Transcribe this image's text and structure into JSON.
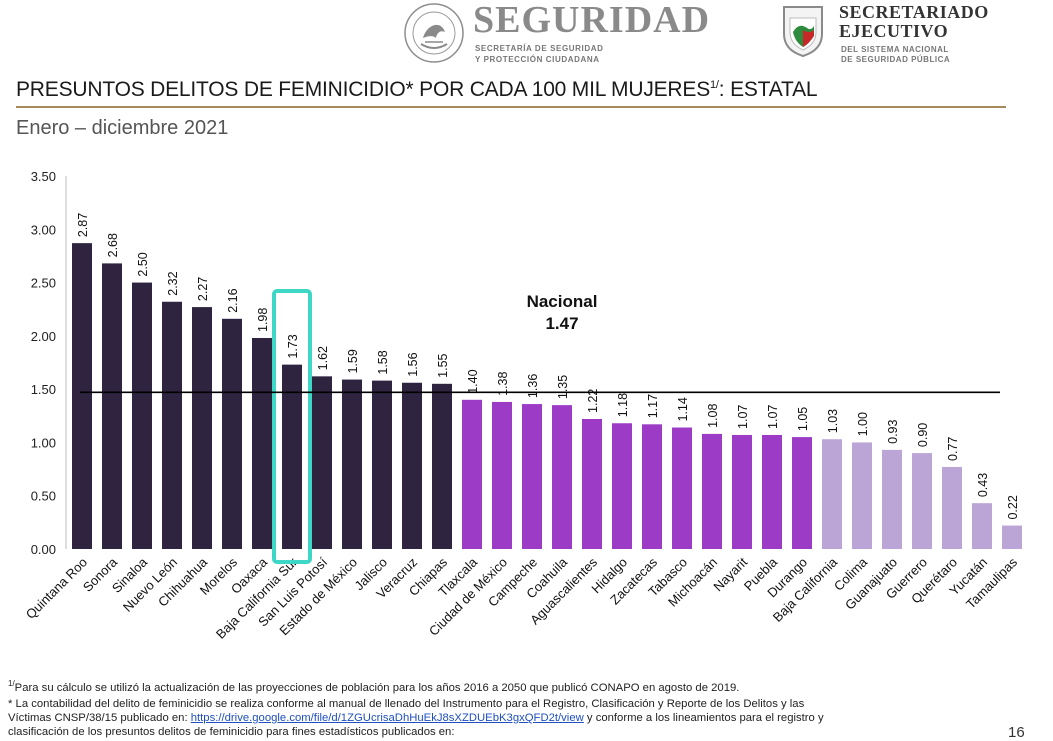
{
  "header": {
    "seguridad_title": "SEGURIDAD",
    "seguridad_sub_1": "SECRETARÍA DE SEGURIDAD",
    "seguridad_sub_2": "Y PROTECCIÓN CIUDADANA",
    "seal_text": "ESTADOS UNIDOS MEXICANOS",
    "sesnsp_title_1": "SECRETARIADO",
    "sesnsp_title_2": "EJECUTIVO",
    "sesnsp_sub_1": "DEL SISTEMA NACIONAL",
    "sesnsp_sub_2": "DE SEGURIDAD PÚBLICA"
  },
  "title_main": "PRESUNTOS DELITOS DE FEMINICIDIO* POR CADA 100 MIL MUJERES",
  "title_sup": "1/",
  "title_tail": ": ESTATAL",
  "period": "Enero – diciembre 2021",
  "colors": {
    "dark": "#2f2440",
    "purple": "#9b3bc6",
    "light": "#bba4d6",
    "highlight": "#3ed6c4",
    "national_line": "#000000",
    "title_rule": "#a58a5b"
  },
  "chart_data": {
    "type": "bar",
    "ylim": [
      0,
      3.5
    ],
    "yticks": [
      "0.00",
      "0.50",
      "1.00",
      "1.50",
      "2.00",
      "2.50",
      "3.00",
      "3.50"
    ],
    "categories": [
      "Quintana Roo",
      "Sonora",
      "Sinaloa",
      "Nuevo León",
      "Chihuahua",
      "Morelos",
      "Oaxaca",
      "Baja California Sur",
      "San Luis Potosí",
      "Estado de México",
      "Jalisco",
      "Veracruz",
      "Chiapas",
      "Tlaxcala",
      "Ciudad de México",
      "Campeche",
      "Coahuila",
      "Aguascalientes",
      "Hidalgo",
      "Zacatecas",
      "Tabasco",
      "Michoacán",
      "Nayarit",
      "Puebla",
      "Durango",
      "Baja California",
      "Colima",
      "Guanajuato",
      "Guerrero",
      "Querétaro",
      "Yucatán",
      "Tamaulipas"
    ],
    "values": [
      2.87,
      2.68,
      2.5,
      2.32,
      2.27,
      2.16,
      1.98,
      1.73,
      1.62,
      1.59,
      1.58,
      1.56,
      1.55,
      1.4,
      1.38,
      1.36,
      1.35,
      1.22,
      1.18,
      1.17,
      1.14,
      1.08,
      1.07,
      1.07,
      1.05,
      1.03,
      1.0,
      0.93,
      0.9,
      0.77,
      0.43,
      0.22
    ],
    "value_labels": [
      "2.87",
      "2.68",
      "2.50",
      "2.32",
      "2.27",
      "2.16",
      "1.98",
      "1.73",
      "1.62",
      "1.59",
      "1.58",
      "1.56",
      "1.55",
      "1.40",
      "1.38",
      "1.36",
      "1.35",
      "1.22",
      "1.18",
      "1.17",
      "1.14",
      "1.08",
      "1.07",
      "1.07",
      "1.05",
      "1.03",
      "1.00",
      "0.93",
      "0.90",
      "0.77",
      "0.43",
      "0.22"
    ],
    "color_groups": [
      "dark",
      "dark",
      "dark",
      "dark",
      "dark",
      "dark",
      "dark",
      "dark",
      "dark",
      "dark",
      "dark",
      "dark",
      "dark",
      "purple",
      "purple",
      "purple",
      "purple",
      "purple",
      "purple",
      "purple",
      "purple",
      "purple",
      "purple",
      "purple",
      "purple",
      "light",
      "light",
      "light",
      "light",
      "light",
      "light",
      "light"
    ],
    "highlighted_category": "Baja California Sur",
    "reference_line": {
      "label": "Nacional",
      "value": 1.47,
      "value_label": "1.47"
    },
    "grid": false,
    "legend": "none"
  },
  "footnotes": {
    "note1_mark": "1/",
    "note1": "Para su cálculo se utilizó la actualización de las proyecciones de población para los años 2016 a 2050 que publicó CONAPO en agosto de 2019.",
    "note2_line1": "* La contabilidad del delito de feminicidio se realiza conforme al manual de llenado del Instrumento para el Registro, Clasificación y Reporte de los Delitos y las",
    "note2_line2_pre": "Víctimas CNSP/38/15 publicado en: ",
    "note2_link": "https://drive.google.com/file/d/1ZGUcrisaDhHuEkJ8sXZDUEbK3gxQFD2t/view",
    "note2_line2_post": " y conforme a los lineamientos para el registro y",
    "note2_line3": "clasificación de los presuntos delitos de feminicidio para fines estadísticos publicados en:"
  },
  "page_number": "16"
}
